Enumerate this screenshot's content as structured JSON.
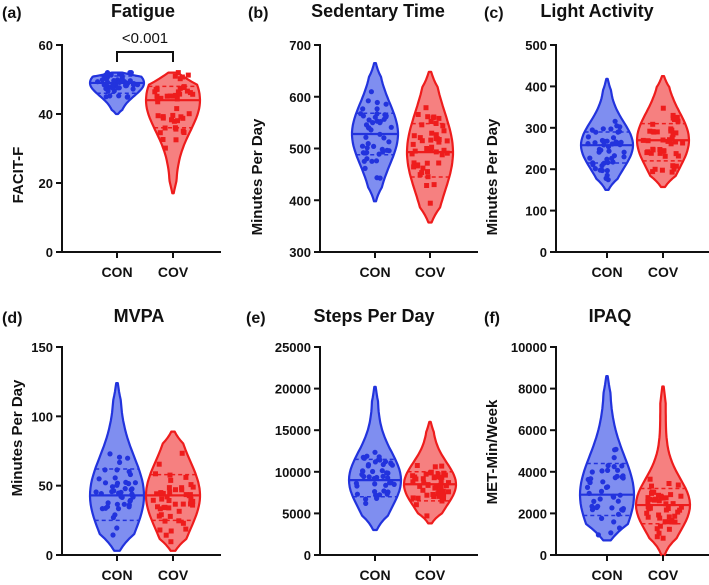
{
  "colors": {
    "con": "#2233dd",
    "con_fill": "#7f8ef0",
    "cov": "#ee1c1c",
    "cov_fill": "#f68080",
    "axis": "#111111"
  },
  "chart_data": [
    {
      "panel": "(a)",
      "type": "violin",
      "title": "Fatigue",
      "ylabel": "FACIT-F",
      "categories": [
        "CON",
        "COV"
      ],
      "ylim": [
        0,
        60
      ],
      "yticks": [
        "0",
        "20",
        "40",
        "60"
      ],
      "annotation": {
        "text": "<0.001",
        "between": [
          "CON",
          "COV"
        ]
      },
      "series": [
        {
          "name": "CON",
          "color": "#2233dd",
          "min": 40,
          "max": 52,
          "median": 49,
          "q1": 46,
          "q3": 51
        },
        {
          "name": "COV",
          "color": "#ee1c1c",
          "min": 17,
          "max": 52,
          "median": 44,
          "q1": 36,
          "q3": 48
        }
      ]
    },
    {
      "panel": "(b)",
      "type": "violin",
      "title": "Sedentary Time",
      "ylabel": "Minutes Per Day",
      "categories": [
        "CON",
        "COV"
      ],
      "ylim": [
        300,
        700
      ],
      "yticks": [
        "300",
        "400",
        "500",
        "600",
        "700"
      ],
      "series": [
        {
          "name": "CON",
          "color": "#2233dd",
          "min": 398,
          "max": 665,
          "median": 528,
          "q1": 488,
          "q3": 568
        },
        {
          "name": "COV",
          "color": "#ee1c1c",
          "min": 357,
          "max": 648,
          "median": 493,
          "q1": 445,
          "q3": 548
        }
      ]
    },
    {
      "panel": "(c)",
      "type": "violin",
      "title": "Light Activity",
      "ylabel": "Minutes Per Day",
      "categories": [
        "CON",
        "COV"
      ],
      "ylim": [
        0,
        500
      ],
      "yticks": [
        "0",
        "100",
        "200",
        "300",
        "400",
        "500"
      ],
      "series": [
        {
          "name": "CON",
          "color": "#2233dd",
          "min": 150,
          "max": 418,
          "median": 258,
          "q1": 215,
          "q3": 290
        },
        {
          "name": "COV",
          "color": "#ee1c1c",
          "min": 157,
          "max": 425,
          "median": 270,
          "q1": 220,
          "q3": 310
        }
      ]
    },
    {
      "panel": "(d)",
      "type": "violin",
      "title": "MVPA",
      "ylabel": "Minutes Per Day",
      "categories": [
        "CON",
        "COV"
      ],
      "ylim": [
        0,
        150
      ],
      "yticks": [
        "0",
        "50",
        "100",
        "150"
      ],
      "series": [
        {
          "name": "CON",
          "color": "#2233dd",
          "min": 3,
          "max": 124,
          "median": 43,
          "q1": 25,
          "q3": 62
        },
        {
          "name": "COV",
          "color": "#ee1c1c",
          "min": 3,
          "max": 89,
          "median": 43,
          "q1": 25,
          "q3": 58
        }
      ]
    },
    {
      "panel": "(e)",
      "type": "violin",
      "title": "Steps Per Day",
      "ylabel": "",
      "categories": [
        "CON",
        "COV"
      ],
      "ylim": [
        0,
        25000
      ],
      "yticks": [
        "0",
        "5000",
        "10000",
        "15000",
        "20000",
        "25000"
      ],
      "series": [
        {
          "name": "CON",
          "color": "#2233dd",
          "min": 3000,
          "max": 20200,
          "median": 9000,
          "q1": 7000,
          "q3": 11500
        },
        {
          "name": "COV",
          "color": "#ee1c1c",
          "min": 3800,
          "max": 16000,
          "median": 8500,
          "q1": 6500,
          "q3": 10000
        }
      ]
    },
    {
      "panel": "(f)",
      "type": "violin",
      "title": "IPAQ",
      "ylabel": "MET-Min/Week",
      "categories": [
        "CON",
        "COV"
      ],
      "ylim": [
        0,
        10000
      ],
      "yticks": [
        "0",
        "2000",
        "4000",
        "6000",
        "8000",
        "10000"
      ],
      "series": [
        {
          "name": "CON",
          "color": "#2233dd",
          "min": 700,
          "max": 8600,
          "median": 2900,
          "q1": 1900,
          "q3": 4400
        },
        {
          "name": "COV",
          "color": "#ee1c1c",
          "min": 0,
          "max": 8100,
          "median": 2400,
          "q1": 1500,
          "q3": 3200
        }
      ]
    }
  ]
}
